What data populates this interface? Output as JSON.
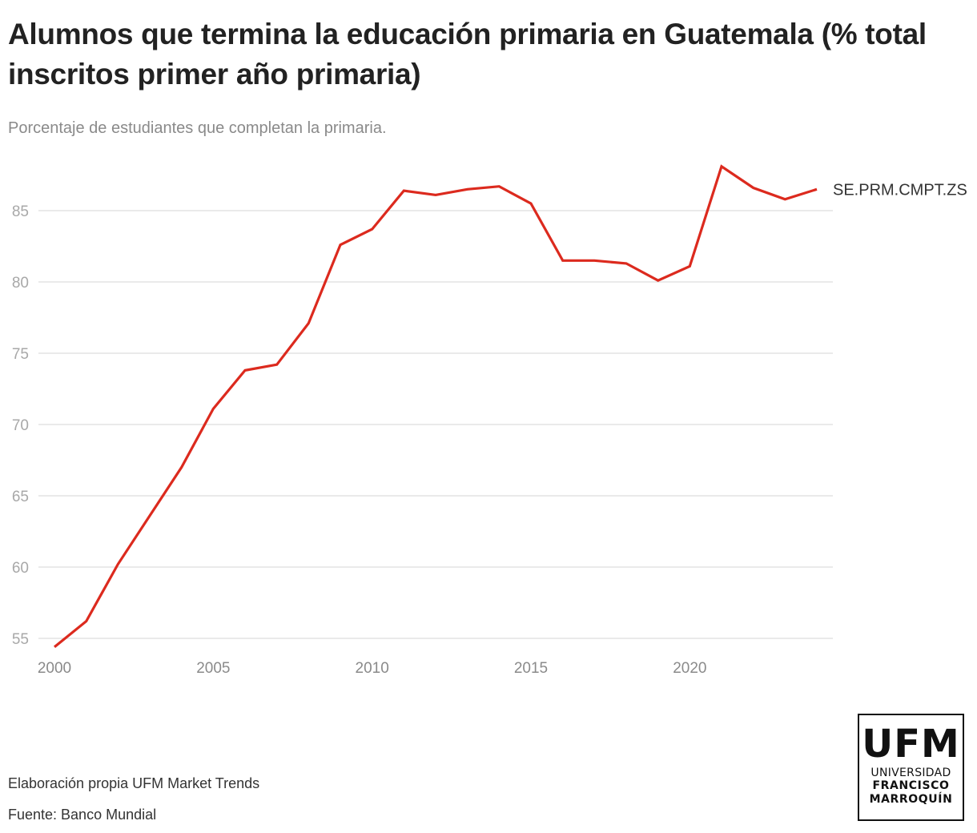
{
  "header": {
    "title": "Alumnos que termina la educación primaria en Guatemala (% total inscritos primer año primaria)",
    "subtitle": "Porcentaje de estudiantes que completan la primaria."
  },
  "footer": {
    "credit": "Elaboración propia UFM Market Trends",
    "source": "Fuente: Banco Mundial"
  },
  "logo": {
    "main": "UFM",
    "line1": "UNIVERSIDAD",
    "line2": "FRANCISCO",
    "line3": "MARROQUÍN"
  },
  "colors": {
    "line": "#dc2a1e",
    "grid": "#e3e3e3",
    "tick_label": "#a8a8a8",
    "x_tick_label": "#8a8a8a",
    "series_label": "#333333"
  },
  "chart_data": {
    "type": "line",
    "title": "Alumnos que termina la educación primaria en Guatemala (% total inscritos primer año primaria)",
    "subtitle": "Porcentaje de estudiantes que completan la primaria.",
    "xlabel": "",
    "ylabel": "",
    "x": [
      2000,
      2001,
      2002,
      2003,
      2004,
      2005,
      2006,
      2007,
      2008,
      2009,
      2010,
      2011,
      2012,
      2013,
      2014,
      2015,
      2016,
      2017,
      2018,
      2019,
      2020,
      2021,
      2022,
      2023,
      2024
    ],
    "series": [
      {
        "name": "SE.PRM.CMPT.ZS",
        "values": [
          54.4,
          56.2,
          60.2,
          63.6,
          67.0,
          71.1,
          73.8,
          74.2,
          77.1,
          82.6,
          83.7,
          86.4,
          86.1,
          86.5,
          86.7,
          85.5,
          81.5,
          81.5,
          81.3,
          80.1,
          81.1,
          88.1,
          86.6,
          85.8,
          86.5
        ]
      }
    ],
    "xlim": [
      2000,
      2024
    ],
    "ylim": [
      54,
      88.5
    ],
    "x_ticks": [
      2000,
      2005,
      2010,
      2015,
      2020
    ],
    "y_ticks": [
      55,
      60,
      65,
      70,
      75,
      80,
      85
    ],
    "grid": "horizontal",
    "legend": "direct-label-right"
  }
}
